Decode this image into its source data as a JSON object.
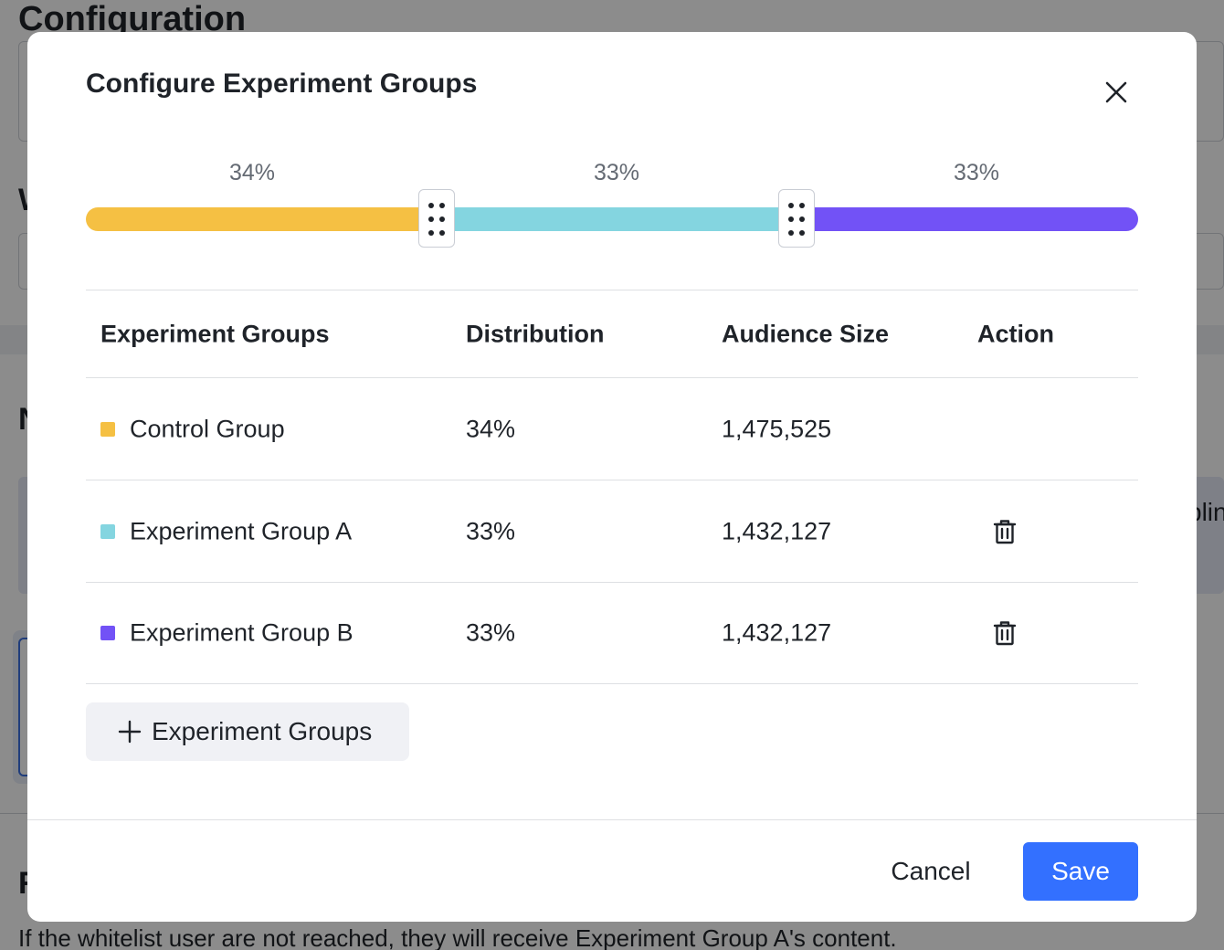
{
  "background": {
    "title": "Configuration",
    "letter_w": "W",
    "letter_n": "N",
    "letter_r": "R",
    "panel_text": "plin",
    "bottom_text": "If the whitelist user are not reached, they will receive Experiment Group A's content."
  },
  "modal": {
    "title": "Configure Experiment Groups",
    "close_icon": "close-icon",
    "slider": {
      "segments": [
        {
          "name": "Control Group",
          "percent": 34,
          "label": "34%",
          "color": "#f5c043"
        },
        {
          "name": "Experiment Group A",
          "percent": 33,
          "label": "33%",
          "color": "#84d5e0"
        },
        {
          "name": "Experiment Group B",
          "percent": 33,
          "label": "33%",
          "color": "#7252f6"
        }
      ]
    },
    "table": {
      "headers": {
        "group": "Experiment Groups",
        "distribution": "Distribution",
        "audience": "Audience Size",
        "action": "Action"
      },
      "rows": [
        {
          "group": "Control Group",
          "distribution": "34%",
          "audience": "1,475,525",
          "color": "#f5c043",
          "deletable": false
        },
        {
          "group": "Experiment Group A",
          "distribution": "33%",
          "audience": "1,432,127",
          "color": "#84d5e0",
          "deletable": true,
          "action_icon": "trash-icon"
        },
        {
          "group": "Experiment Group B",
          "distribution": "33%",
          "audience": "1,432,127",
          "color": "#7252f6",
          "deletable": true,
          "action_icon": "trash-icon"
        }
      ]
    },
    "add_button": {
      "label": "Experiment Groups",
      "icon": "plus-icon"
    },
    "footer": {
      "cancel_label": "Cancel",
      "save_label": "Save",
      "save_color": "#3370ff"
    }
  }
}
